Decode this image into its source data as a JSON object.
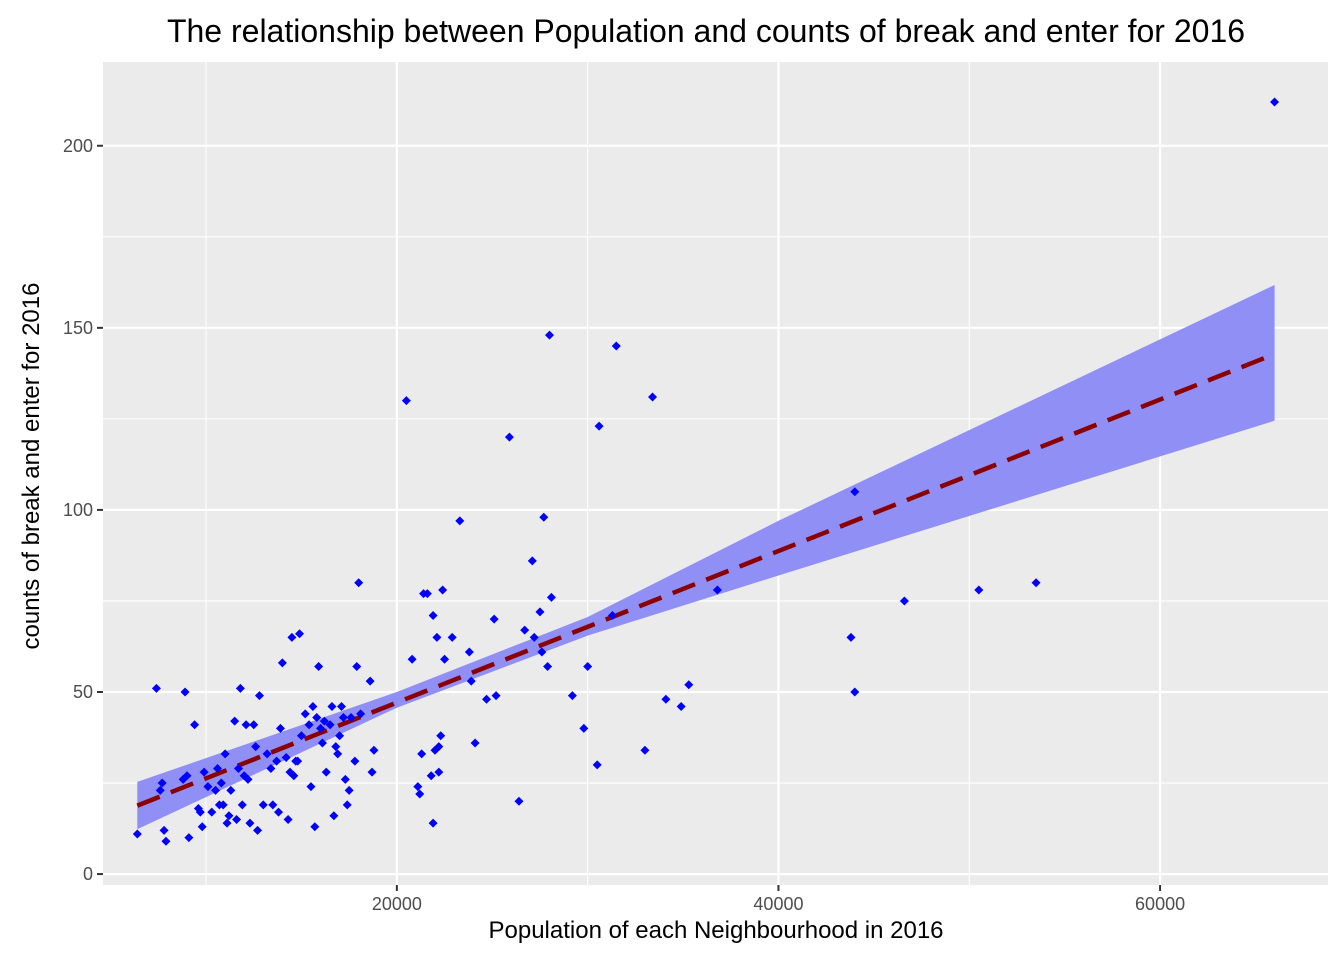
{
  "chart_data": {
    "type": "scatter",
    "title": "The relationship between Population and counts of break and enter for 2016",
    "xlabel": "Population of each Neighbourhood in 2016",
    "ylabel": "counts of break and enter for 2016",
    "xlim": [
      4600,
      68800
    ],
    "ylim": [
      -3,
      223
    ],
    "x_ticks": [
      20000,
      40000,
      60000
    ],
    "x_tick_labels": [
      "20000",
      "40000",
      "60000"
    ],
    "y_ticks": [
      0,
      50,
      100,
      150,
      200
    ],
    "y_tick_labels": [
      "0",
      "50",
      "100",
      "150",
      "200"
    ],
    "grid": true,
    "legend": "none",
    "colors": {
      "panel": "#ebebeb",
      "grid": "#ffffff",
      "points": "#0000ff",
      "trend_line": "#8b0000",
      "confidence_band": "#8f8ff5"
    },
    "trend_line": {
      "style": "dashed",
      "x": [
        6400,
        66000
      ],
      "y": [
        18.8,
        142.8
      ]
    },
    "confidence_band": {
      "x": [
        6400,
        20000,
        30000,
        40000,
        66000
      ],
      "upper": [
        25.3,
        50.0,
        70.6,
        97.0,
        161.8
      ],
      "lower": [
        12.3,
        45.7,
        65.5,
        82.0,
        124.5
      ]
    },
    "points": [
      {
        "x": 6400,
        "y": 11
      },
      {
        "x": 7400,
        "y": 51
      },
      {
        "x": 7600,
        "y": 23
      },
      {
        "x": 7700,
        "y": 25
      },
      {
        "x": 7800,
        "y": 12
      },
      {
        "x": 7900,
        "y": 9
      },
      {
        "x": 8800,
        "y": 26
      },
      {
        "x": 8900,
        "y": 50
      },
      {
        "x": 9000,
        "y": 27
      },
      {
        "x": 9100,
        "y": 10
      },
      {
        "x": 9400,
        "y": 41
      },
      {
        "x": 9600,
        "y": 18
      },
      {
        "x": 9700,
        "y": 17
      },
      {
        "x": 9800,
        "y": 13
      },
      {
        "x": 9900,
        "y": 28
      },
      {
        "x": 10100,
        "y": 24
      },
      {
        "x": 10300,
        "y": 17
      },
      {
        "x": 10500,
        "y": 23
      },
      {
        "x": 10600,
        "y": 29
      },
      {
        "x": 10700,
        "y": 19
      },
      {
        "x": 10800,
        "y": 25
      },
      {
        "x": 10900,
        "y": 19
      },
      {
        "x": 11000,
        "y": 33
      },
      {
        "x": 11100,
        "y": 14
      },
      {
        "x": 11200,
        "y": 16
      },
      {
        "x": 11300,
        "y": 23
      },
      {
        "x": 11500,
        "y": 42
      },
      {
        "x": 11600,
        "y": 15
      },
      {
        "x": 11700,
        "y": 29
      },
      {
        "x": 11800,
        "y": 51
      },
      {
        "x": 11900,
        "y": 19
      },
      {
        "x": 12000,
        "y": 27
      },
      {
        "x": 12100,
        "y": 41
      },
      {
        "x": 12200,
        "y": 26
      },
      {
        "x": 12300,
        "y": 14
      },
      {
        "x": 12500,
        "y": 41
      },
      {
        "x": 12600,
        "y": 35
      },
      {
        "x": 12700,
        "y": 12
      },
      {
        "x": 12800,
        "y": 49
      },
      {
        "x": 13000,
        "y": 19
      },
      {
        "x": 13200,
        "y": 33
      },
      {
        "x": 13400,
        "y": 29
      },
      {
        "x": 13500,
        "y": 19
      },
      {
        "x": 13700,
        "y": 31
      },
      {
        "x": 13800,
        "y": 17
      },
      {
        "x": 13900,
        "y": 40
      },
      {
        "x": 14000,
        "y": 58
      },
      {
        "x": 14200,
        "y": 32
      },
      {
        "x": 14300,
        "y": 15
      },
      {
        "x": 14400,
        "y": 28
      },
      {
        "x": 14500,
        "y": 65
      },
      {
        "x": 14600,
        "y": 27
      },
      {
        "x": 14700,
        "y": 31
      },
      {
        "x": 14800,
        "y": 31
      },
      {
        "x": 14900,
        "y": 66
      },
      {
        "x": 15000,
        "y": 38
      },
      {
        "x": 15200,
        "y": 44
      },
      {
        "x": 15400,
        "y": 41
      },
      {
        "x": 15500,
        "y": 24
      },
      {
        "x": 15600,
        "y": 46
      },
      {
        "x": 15700,
        "y": 13
      },
      {
        "x": 15800,
        "y": 43
      },
      {
        "x": 15900,
        "y": 57
      },
      {
        "x": 16000,
        "y": 40
      },
      {
        "x": 16100,
        "y": 36
      },
      {
        "x": 16200,
        "y": 42
      },
      {
        "x": 16300,
        "y": 28
      },
      {
        "x": 16500,
        "y": 41
      },
      {
        "x": 16600,
        "y": 46
      },
      {
        "x": 16700,
        "y": 16
      },
      {
        "x": 16800,
        "y": 35
      },
      {
        "x": 16900,
        "y": 33
      },
      {
        "x": 17000,
        "y": 38
      },
      {
        "x": 17100,
        "y": 46
      },
      {
        "x": 17200,
        "y": 43
      },
      {
        "x": 17300,
        "y": 26
      },
      {
        "x": 17500,
        "y": 23
      },
      {
        "x": 17400,
        "y": 19
      },
      {
        "x": 17600,
        "y": 43
      },
      {
        "x": 17800,
        "y": 31
      },
      {
        "x": 17900,
        "y": 57
      },
      {
        "x": 18000,
        "y": 80
      },
      {
        "x": 18100,
        "y": 44
      },
      {
        "x": 18600,
        "y": 53
      },
      {
        "x": 18700,
        "y": 28
      },
      {
        "x": 18800,
        "y": 34
      },
      {
        "x": 20500,
        "y": 130
      },
      {
        "x": 20800,
        "y": 59
      },
      {
        "x": 21100,
        "y": 24
      },
      {
        "x": 21200,
        "y": 22
      },
      {
        "x": 21300,
        "y": 33
      },
      {
        "x": 21400,
        "y": 77
      },
      {
        "x": 21600,
        "y": 77
      },
      {
        "x": 21800,
        "y": 27
      },
      {
        "x": 21900,
        "y": 71
      },
      {
        "x": 21900,
        "y": 14
      },
      {
        "x": 22000,
        "y": 34
      },
      {
        "x": 22100,
        "y": 65
      },
      {
        "x": 22200,
        "y": 28
      },
      {
        "x": 22200,
        "y": 35
      },
      {
        "x": 22300,
        "y": 38
      },
      {
        "x": 22400,
        "y": 78
      },
      {
        "x": 22500,
        "y": 59
      },
      {
        "x": 22900,
        "y": 65
      },
      {
        "x": 23300,
        "y": 97
      },
      {
        "x": 23800,
        "y": 61
      },
      {
        "x": 23900,
        "y": 53
      },
      {
        "x": 24100,
        "y": 36
      },
      {
        "x": 24700,
        "y": 48
      },
      {
        "x": 25100,
        "y": 70
      },
      {
        "x": 25200,
        "y": 49
      },
      {
        "x": 25900,
        "y": 120
      },
      {
        "x": 26400,
        "y": 20
      },
      {
        "x": 26700,
        "y": 67
      },
      {
        "x": 27100,
        "y": 86
      },
      {
        "x": 27200,
        "y": 65
      },
      {
        "x": 27500,
        "y": 72
      },
      {
        "x": 27600,
        "y": 61
      },
      {
        "x": 27700,
        "y": 98
      },
      {
        "x": 27900,
        "y": 57
      },
      {
        "x": 28000,
        "y": 148
      },
      {
        "x": 28100,
        "y": 76
      },
      {
        "x": 29200,
        "y": 49
      },
      {
        "x": 29800,
        "y": 40
      },
      {
        "x": 30000,
        "y": 57
      },
      {
        "x": 30500,
        "y": 30
      },
      {
        "x": 30600,
        "y": 123
      },
      {
        "x": 31300,
        "y": 71
      },
      {
        "x": 31500,
        "y": 145
      },
      {
        "x": 33000,
        "y": 34
      },
      {
        "x": 33400,
        "y": 131
      },
      {
        "x": 34100,
        "y": 48
      },
      {
        "x": 34900,
        "y": 46
      },
      {
        "x": 35300,
        "y": 52
      },
      {
        "x": 36800,
        "y": 78
      },
      {
        "x": 43800,
        "y": 65
      },
      {
        "x": 44000,
        "y": 105
      },
      {
        "x": 44000,
        "y": 50
      },
      {
        "x": 46600,
        "y": 75
      },
      {
        "x": 50500,
        "y": 78
      },
      {
        "x": 53500,
        "y": 80
      },
      {
        "x": 66000,
        "y": 212
      }
    ]
  }
}
